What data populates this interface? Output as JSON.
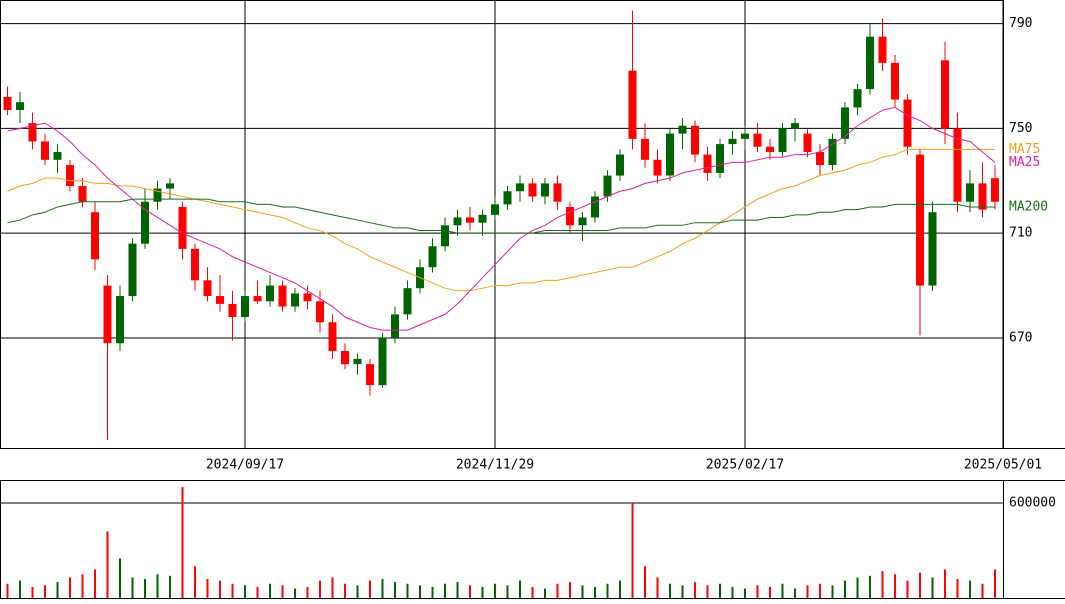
{
  "chart_data": [
    {
      "type": "candlestick",
      "up_color": "#006400",
      "down_color": "#ff0000",
      "open": [
        762,
        757,
        752,
        745,
        738,
        736,
        728,
        718,
        690,
        668,
        686,
        706,
        722,
        727,
        720,
        704,
        692,
        686,
        683,
        678,
        686,
        684,
        690,
        682,
        687,
        684,
        676,
        665,
        660,
        660,
        652,
        670,
        679,
        689,
        697,
        705,
        713,
        716,
        714,
        717,
        721,
        726,
        729,
        724,
        729,
        720,
        713,
        716,
        724,
        732,
        772,
        746,
        738,
        732,
        748,
        751,
        740,
        733,
        744,
        746,
        748,
        743,
        741,
        750,
        748,
        741,
        736,
        746,
        758,
        765,
        785,
        775,
        761,
        740,
        690,
        776,
        750,
        722,
        729,
        731
      ],
      "high": [
        766,
        764,
        756,
        748,
        744,
        738,
        731,
        722,
        694,
        690,
        708,
        727,
        730,
        731,
        722,
        706,
        697,
        694,
        688,
        688,
        692,
        694,
        692,
        689,
        690,
        688,
        679,
        668,
        664,
        662,
        672,
        682,
        692,
        700,
        708,
        716,
        719,
        720,
        719,
        724,
        728,
        732,
        731,
        731,
        732,
        722,
        718,
        726,
        734,
        742,
        795,
        752,
        742,
        750,
        754,
        753,
        743,
        746,
        749,
        751,
        752,
        746,
        752,
        754,
        750,
        744,
        748,
        760,
        767,
        790,
        792,
        778,
        763,
        742,
        722,
        783,
        756,
        734,
        737,
        736
      ],
      "low": [
        755,
        752,
        742,
        736,
        733,
        726,
        720,
        696,
        631,
        665,
        684,
        704,
        719,
        723,
        700,
        688,
        684,
        680,
        669,
        676,
        683,
        682,
        680,
        680,
        681,
        672,
        662,
        658,
        656,
        648,
        651,
        668,
        677,
        687,
        695,
        703,
        709,
        711,
        709,
        715,
        719,
        722,
        722,
        721,
        719,
        710,
        707,
        714,
        722,
        730,
        742,
        735,
        729,
        730,
        742,
        737,
        730,
        731,
        740,
        742,
        741,
        738,
        739,
        745,
        739,
        732,
        734,
        744,
        755,
        763,
        772,
        758,
        740,
        671,
        688,
        744,
        718,
        718,
        716,
        719
      ],
      "close": [
        757,
        760,
        745,
        738,
        741,
        728,
        722,
        700,
        668,
        686,
        706,
        722,
        727,
        729,
        704,
        692,
        686,
        683,
        678,
        686,
        684,
        690,
        682,
        687,
        684,
        676,
        665,
        660,
        662,
        652,
        670,
        679,
        689,
        697,
        705,
        713,
        716,
        714,
        717,
        721,
        726,
        729,
        724,
        729,
        722,
        713,
        716,
        724,
        732,
        740,
        746,
        738,
        732,
        748,
        751,
        740,
        733,
        744,
        746,
        748,
        743,
        741,
        750,
        752,
        741,
        736,
        746,
        758,
        765,
        785,
        775,
        761,
        743,
        690,
        718,
        750,
        722,
        729,
        719,
        722
      ],
      "series": [
        {
          "name": "MA75",
          "color": "#f0a020",
          "values": [
            726,
            728,
            729,
            731,
            731,
            730,
            730,
            729,
            729,
            728,
            728,
            727,
            726,
            725,
            724,
            723,
            722,
            721,
            720,
            719,
            718,
            717,
            716,
            714,
            712,
            711,
            709,
            706,
            704,
            701,
            699,
            697,
            695,
            693,
            691,
            689,
            688,
            688,
            689,
            690,
            690,
            691,
            691,
            692,
            692,
            693,
            694,
            695,
            696,
            697,
            697,
            699,
            701,
            703,
            706,
            708,
            711,
            714,
            717,
            720,
            723,
            725,
            727,
            728,
            730,
            732,
            733,
            734,
            736,
            737,
            739,
            740,
            742,
            742,
            742,
            742,
            742,
            742,
            742,
            742
          ]
        },
        {
          "name": "MA25",
          "color": "#e020a0",
          "values": [
            749,
            750,
            751,
            752,
            749,
            745,
            740,
            736,
            731,
            727,
            723,
            719,
            716,
            713,
            710,
            708,
            706,
            704,
            701,
            699,
            697,
            695,
            693,
            691,
            688,
            685,
            682,
            678,
            676,
            674,
            673,
            673,
            673,
            675,
            677,
            679,
            683,
            688,
            693,
            698,
            703,
            708,
            711,
            713,
            716,
            718,
            720,
            722,
            724,
            726,
            727,
            729,
            730,
            731,
            733,
            734,
            735,
            736,
            737,
            737,
            738,
            739,
            739,
            740,
            740,
            741,
            744,
            747,
            751,
            754,
            757,
            758,
            755,
            753,
            750,
            748,
            746,
            745,
            741,
            737
          ]
        },
        {
          "name": "MA200",
          "color": "#1a6b1a",
          "values": [
            714,
            715,
            717,
            718,
            720,
            721,
            722,
            722,
            722,
            722,
            723,
            723,
            723,
            723,
            723,
            723,
            723,
            722,
            722,
            722,
            721,
            721,
            720,
            720,
            719,
            718,
            717,
            716,
            715,
            714,
            713,
            712,
            712,
            711,
            711,
            711,
            710,
            710,
            710,
            710,
            710,
            710,
            710,
            711,
            711,
            711,
            711,
            711,
            711,
            712,
            712,
            712,
            713,
            713,
            713,
            714,
            714,
            714,
            715,
            715,
            715,
            716,
            716,
            717,
            717,
            718,
            718,
            719,
            719,
            720,
            720,
            721,
            721,
            721,
            721,
            721,
            721,
            720,
            720,
            720
          ]
        }
      ],
      "ylim": [
        628,
        799
      ],
      "yticks": [
        670,
        710,
        750,
        790
      ],
      "xlim": [
        -0.6,
        79.64
      ],
      "xticks": [
        {
          "value": 19,
          "label": "2024/09/17"
        },
        {
          "value": 39,
          "label": "2024/11/29"
        },
        {
          "value": 59,
          "label": "2025/02/17"
        },
        {
          "value": 79.64,
          "label": "2025/05/01"
        }
      ],
      "grid": true
    },
    {
      "type": "bar",
      "values": [
        90000,
        110000,
        70000,
        80000,
        100000,
        130000,
        150000,
        180000,
        420000,
        250000,
        130000,
        120000,
        150000,
        140000,
        700000,
        200000,
        120000,
        110000,
        90000,
        80000,
        70000,
        90000,
        80000,
        60000,
        70000,
        110000,
        130000,
        90000,
        80000,
        110000,
        120000,
        100000,
        90000,
        80000,
        70000,
        90000,
        100000,
        80000,
        70000,
        90000,
        80000,
        110000,
        70000,
        60000,
        90000,
        100000,
        80000,
        70000,
        90000,
        110000,
        600000,
        200000,
        130000,
        90000,
        80000,
        100000,
        80000,
        90000,
        70000,
        60000,
        80000,
        70000,
        90000,
        60000,
        80000,
        90000,
        80000,
        110000,
        130000,
        140000,
        170000,
        150000,
        110000,
        160000,
        130000,
        180000,
        120000,
        110000,
        90000,
        180000
      ],
      "ylim": [
        0,
        745000
      ],
      "yticks": [
        600000
      ],
      "grid": true
    }
  ]
}
